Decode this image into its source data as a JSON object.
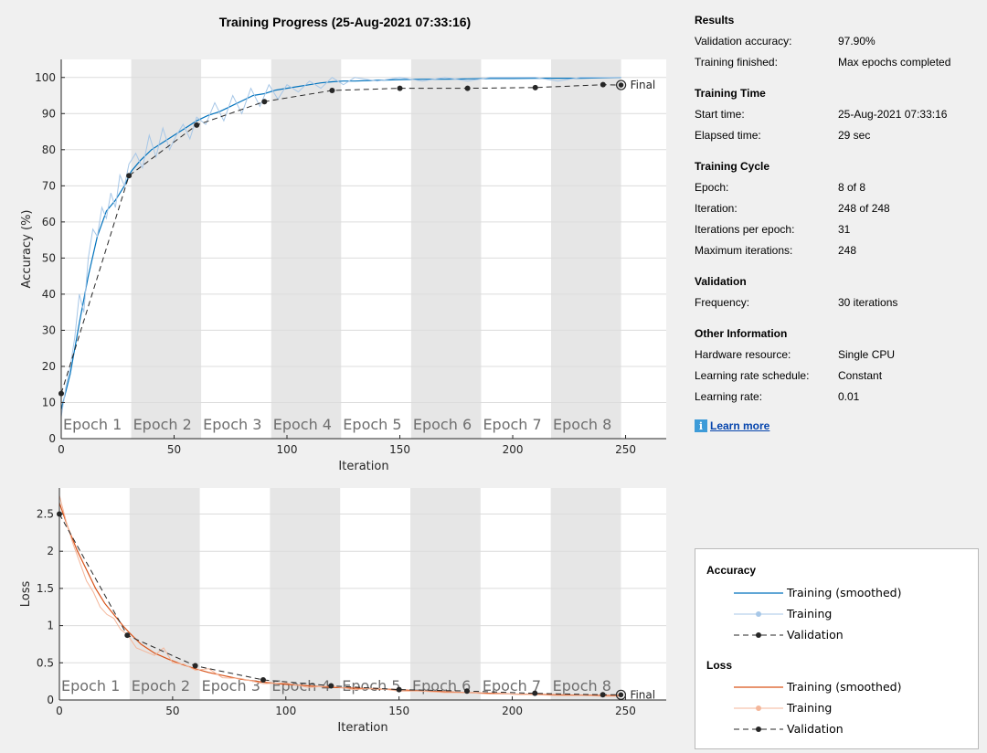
{
  "chart_data": [
    {
      "type": "line",
      "title": "Training Progress (25-Aug-2021 07:33:16)",
      "xlabel": "Iteration",
      "ylabel": "Accuracy (%)",
      "xlim": [
        0,
        268
      ],
      "ylim": [
        0,
        105
      ],
      "xticks": [
        0,
        50,
        100,
        150,
        200,
        250
      ],
      "yticks": [
        0,
        10,
        20,
        30,
        40,
        50,
        60,
        70,
        80,
        90,
        100
      ],
      "epochs": [
        "Epoch 1",
        "Epoch 2",
        "Epoch 3",
        "Epoch 4",
        "Epoch 5",
        "Epoch 6",
        "Epoch 7",
        "Epoch 8"
      ],
      "epoch_length": 31,
      "final_label": "Final",
      "series": [
        {
          "name": "Training (smoothed)",
          "color": "#0072bd",
          "x": [
            0,
            4,
            8,
            12,
            16,
            20,
            24,
            28,
            31,
            35,
            40,
            45,
            50,
            55,
            60,
            65,
            70,
            75,
            80,
            85,
            90,
            95,
            100,
            105,
            110,
            115,
            120,
            125,
            130,
            140,
            150,
            160,
            170,
            180,
            190,
            200,
            210,
            220,
            230,
            240,
            248
          ],
          "values": [
            8,
            18,
            32,
            45,
            56,
            63,
            66,
            70,
            74,
            77,
            80,
            82,
            84,
            86,
            88,
            89.5,
            90.5,
            92,
            93.5,
            95,
            95.5,
            96.5,
            97,
            97.5,
            98,
            98.5,
            98.8,
            99,
            99,
            99.2,
            99.4,
            99.5,
            99.5,
            99.6,
            99.7,
            99.7,
            99.8,
            99.8,
            99.8,
            99.9,
            100
          ]
        },
        {
          "name": "Training",
          "color": "#a7c7e7",
          "x": [
            0,
            2,
            4,
            6,
            8,
            10,
            12,
            14,
            16,
            18,
            20,
            22,
            24,
            26,
            28,
            30,
            33,
            36,
            39,
            42,
            45,
            48,
            51,
            54,
            57,
            60,
            64,
            68,
            72,
            76,
            80,
            84,
            88,
            92,
            96,
            100,
            105,
            110,
            115,
            120,
            125,
            130,
            140,
            150,
            160,
            170,
            180,
            190,
            200,
            210,
            220,
            230,
            240,
            248
          ],
          "values": [
            6,
            14,
            20,
            28,
            40,
            35,
            50,
            58,
            56,
            64,
            61,
            68,
            64,
            73,
            70,
            76,
            79,
            75,
            84,
            78,
            86,
            80,
            84,
            87,
            83,
            89,
            87,
            93,
            88,
            95,
            90,
            97,
            92,
            98,
            94,
            98,
            96,
            99,
            97,
            100,
            98,
            100,
            99,
            100,
            99,
            100,
            99,
            100,
            100,
            100,
            99,
            100,
            100,
            100
          ]
        },
        {
          "name": "Validation",
          "color": "#262626",
          "x": [
            0,
            30,
            60,
            90,
            120,
            150,
            180,
            210,
            240,
            248
          ],
          "values": [
            12.5,
            72.8,
            86.8,
            93.3,
            96.4,
            97.0,
            97.0,
            97.2,
            98.0,
            97.9
          ]
        }
      ]
    },
    {
      "type": "line",
      "title": "",
      "xlabel": "Iteration",
      "ylabel": "Loss",
      "xlim": [
        0,
        268
      ],
      "ylim": [
        0,
        2.85
      ],
      "xticks": [
        0,
        50,
        100,
        150,
        200,
        250
      ],
      "yticks": [
        0,
        0.5,
        1,
        1.5,
        2,
        2.5
      ],
      "epochs": [
        "Epoch 1",
        "Epoch 2",
        "Epoch 3",
        "Epoch 4",
        "Epoch 5",
        "Epoch 6",
        "Epoch 7",
        "Epoch 8"
      ],
      "epoch_length": 31,
      "final_label": "Final",
      "series": [
        {
          "name": "Training (smoothed)",
          "color": "#d95319",
          "x": [
            0,
            4,
            8,
            12,
            16,
            20,
            24,
            28,
            31,
            36,
            42,
            48,
            54,
            60,
            66,
            72,
            80,
            90,
            100,
            110,
            120,
            130,
            140,
            150,
            160,
            170,
            180,
            190,
            200,
            210,
            220,
            230,
            240,
            248
          ],
          "values": [
            2.65,
            2.3,
            2.0,
            1.75,
            1.5,
            1.3,
            1.15,
            1.0,
            0.9,
            0.75,
            0.63,
            0.55,
            0.48,
            0.42,
            0.37,
            0.33,
            0.28,
            0.24,
            0.21,
            0.19,
            0.17,
            0.16,
            0.15,
            0.14,
            0.12,
            0.11,
            0.1,
            0.09,
            0.08,
            0.075,
            0.07,
            0.065,
            0.06,
            0.06
          ]
        },
        {
          "name": "Training",
          "color": "#f4b69a",
          "x": [
            0,
            3,
            6,
            9,
            12,
            15,
            18,
            21,
            24,
            27,
            30,
            34,
            38,
            42,
            46,
            50,
            55,
            60,
            66,
            72,
            80,
            90,
            100,
            110,
            120,
            130,
            140,
            150,
            160,
            170,
            180,
            190,
            200,
            210,
            220,
            230,
            240,
            248
          ],
          "values": [
            2.75,
            2.4,
            2.1,
            1.85,
            1.6,
            1.45,
            1.25,
            1.15,
            1.1,
            0.95,
            0.88,
            0.7,
            0.65,
            0.6,
            0.7,
            0.5,
            0.48,
            0.4,
            0.42,
            0.3,
            0.29,
            0.22,
            0.23,
            0.17,
            0.19,
            0.14,
            0.16,
            0.12,
            0.12,
            0.1,
            0.1,
            0.08,
            0.08,
            0.07,
            0.06,
            0.06,
            0.05,
            0.05
          ]
        },
        {
          "name": "Validation",
          "color": "#262626",
          "x": [
            0,
            30,
            60,
            90,
            120,
            150,
            180,
            210,
            240,
            248
          ],
          "values": [
            2.5,
            0.87,
            0.46,
            0.27,
            0.19,
            0.14,
            0.12,
            0.09,
            0.07,
            0.07
          ]
        }
      ]
    }
  ],
  "info": {
    "sections": [
      {
        "title": "Results",
        "rows": [
          {
            "label": "Validation accuracy:",
            "value": "97.90%"
          },
          {
            "label": "Training finished:",
            "value": "Max epochs completed"
          }
        ]
      },
      {
        "title": "Training Time",
        "rows": [
          {
            "label": "Start time:",
            "value": "25-Aug-2021 07:33:16"
          },
          {
            "label": "Elapsed time:",
            "value": "29 sec"
          }
        ]
      },
      {
        "title": "Training Cycle",
        "rows": [
          {
            "label": "Epoch:",
            "value": "8 of 8"
          },
          {
            "label": "Iteration:",
            "value": "248 of 248"
          },
          {
            "label": "Iterations per epoch:",
            "value": "31"
          },
          {
            "label": "Maximum iterations:",
            "value": "248"
          }
        ]
      },
      {
        "title": "Validation",
        "rows": [
          {
            "label": "Frequency:",
            "value": "30 iterations"
          }
        ]
      },
      {
        "title": "Other Information",
        "rows": [
          {
            "label": "Hardware resource:",
            "value": "Single CPU"
          },
          {
            "label": "Learning rate schedule:",
            "value": "Constant"
          },
          {
            "label": "Learning rate:",
            "value": "0.01"
          }
        ]
      }
    ],
    "learn_more": "Learn more",
    "info_icon": "info-icon"
  },
  "legend": {
    "accuracy_title": "Accuracy",
    "loss_title": "Loss",
    "accuracy_items": [
      "Training (smoothed)",
      "Training",
      "Validation"
    ],
    "loss_items": [
      "Training (smoothed)",
      "Training",
      "Validation"
    ]
  },
  "colors": {
    "accuracy_smoothed": "#0072bd",
    "accuracy_training": "#a7c7e7",
    "loss_smoothed": "#d95319",
    "loss_training": "#f4b69a",
    "validation": "#262626",
    "epoch_shade": "#e6e6e6"
  }
}
